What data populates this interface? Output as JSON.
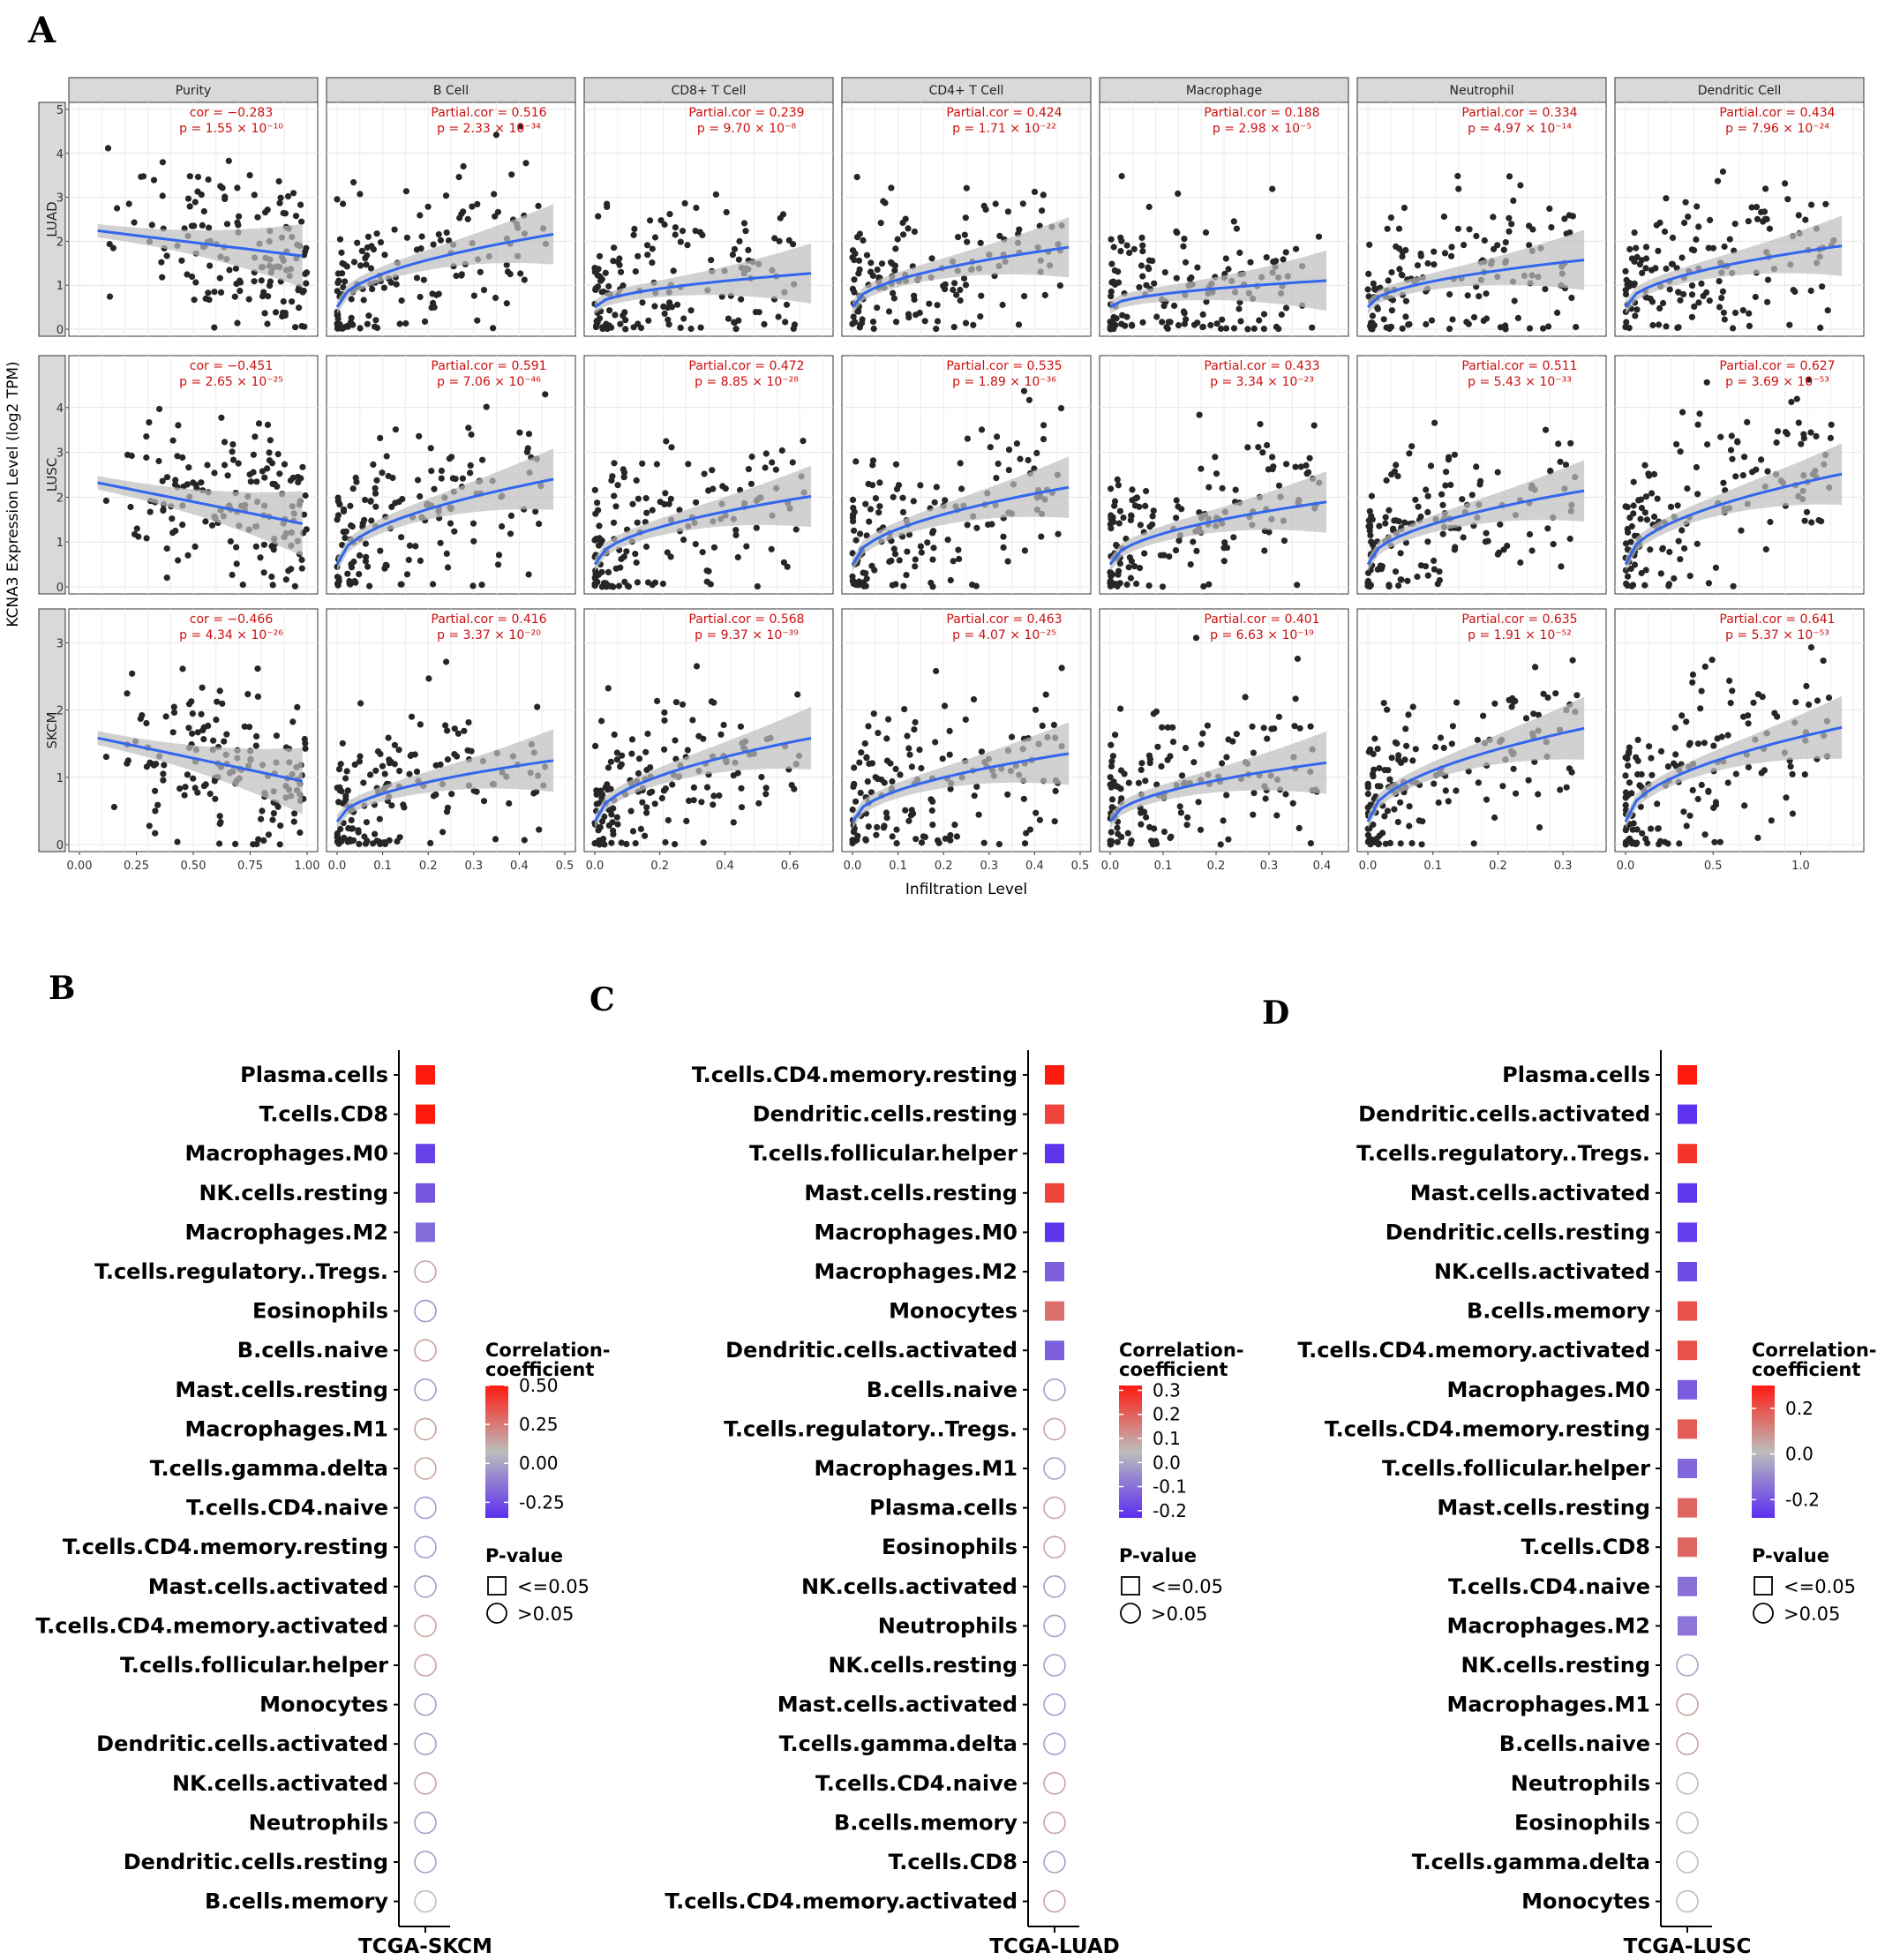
{
  "panel_letters": [
    "A",
    "B",
    "C",
    "D"
  ],
  "chart_data": [
    {
      "panel": "A",
      "type": "scatter",
      "ylabel": "KCNA3 Expression Level (log2 TPM)",
      "xlabel": "Infiltration Level",
      "columns": [
        "Purity",
        "B Cell",
        "CD8+ T Cell",
        "CD4+ T Cell",
        "Macrophage",
        "Neutrophil",
        "Dendritic Cell"
      ],
      "rows": [
        "LUAD",
        "LUSC",
        "SKCM"
      ],
      "x_ranges": [
        [
          0,
          1
        ],
        [
          0,
          0.5
        ],
        [
          0,
          0.7
        ],
        [
          0,
          0.5
        ],
        [
          0,
          0.43
        ],
        [
          0,
          0.35
        ],
        [
          0,
          1.3
        ]
      ],
      "x_tick_labels": [
        [
          "0.00",
          "0.25",
          "0.50",
          "0.75",
          "1.00"
        ],
        [
          "0.0",
          "0.1",
          "0.2",
          "0.3",
          "0.4",
          "0.5"
        ],
        [
          "0.0",
          "0.2",
          "0.4",
          "0.6"
        ],
        [
          "0.0",
          "0.1",
          "0.2",
          "0.3",
          "0.4",
          "0.5"
        ],
        [
          "0.0",
          "0.1",
          "0.2",
          "0.3",
          "0.4"
        ],
        [
          "0.0",
          "0.1",
          "0.2",
          "0.3"
        ],
        [
          "0.0",
          "0.5",
          "1.0"
        ]
      ],
      "y_ranges": {
        "LUAD": [
          0,
          5
        ],
        "LUSC": [
          0,
          5
        ],
        "SKCM": [
          0,
          3.4
        ]
      },
      "y_tick_labels": {
        "LUAD": [
          "0",
          "1",
          "2",
          "3",
          "4",
          "5"
        ],
        "LUSC": [
          "0",
          "1",
          "2",
          "3",
          "4"
        ],
        "SKCM": [
          "0",
          "1",
          "2",
          "3"
        ]
      },
      "annotations": {
        "LUAD": [
          [
            "cor = −0.283",
            "p = 1.55 × 10⁻¹⁰"
          ],
          [
            "Partial.cor = 0.516",
            "p = 2.33 × 10⁻³⁴"
          ],
          [
            "Partial.cor = 0.239",
            "p = 9.70 × 10⁻⁸"
          ],
          [
            "Partial.cor = 0.424",
            "p = 1.71 × 10⁻²²"
          ],
          [
            "Partial.cor = 0.188",
            "p = 2.98 × 10⁻⁵"
          ],
          [
            "Partial.cor = 0.334",
            "p = 4.97 × 10⁻¹⁴"
          ],
          [
            "Partial.cor = 0.434",
            "p = 7.96 × 10⁻²⁴"
          ]
        ],
        "LUSC": [
          [
            "cor = −0.451",
            "p = 2.65 × 10⁻²⁵"
          ],
          [
            "Partial.cor = 0.591",
            "p = 7.06 × 10⁻⁴⁶"
          ],
          [
            "Partial.cor = 0.472",
            "p = 8.85 × 10⁻²⁸"
          ],
          [
            "Partial.cor = 0.535",
            "p = 1.89 × 10⁻³⁶"
          ],
          [
            "Partial.cor = 0.433",
            "p = 3.34 × 10⁻²³"
          ],
          [
            "Partial.cor = 0.511",
            "p = 5.43 × 10⁻³³"
          ],
          [
            "Partial.cor = 0.627",
            "p = 3.69 × 10⁻⁵³"
          ]
        ],
        "SKCM": [
          [
            "cor = −0.466",
            "p = 4.34 × 10⁻²⁶"
          ],
          [
            "Partial.cor = 0.416",
            "p = 3.37 × 10⁻²⁰"
          ],
          [
            "Partial.cor = 0.568",
            "p = 9.37 × 10⁻³⁹"
          ],
          [
            "Partial.cor = 0.463",
            "p = 4.07 × 10⁻²⁵"
          ],
          [
            "Partial.cor = 0.401",
            "p = 6.63 × 10⁻¹⁹"
          ],
          [
            "Partial.cor = 0.635",
            "p = 1.91 × 10⁻⁵²"
          ],
          [
            "Partial.cor = 0.641",
            "p = 5.37 × 10⁻⁵³"
          ]
        ]
      },
      "correlations": {
        "LUAD": [
          -0.283,
          0.516,
          0.239,
          0.424,
          0.188,
          0.334,
          0.434
        ],
        "LUSC": [
          -0.451,
          0.591,
          0.472,
          0.535,
          0.433,
          0.511,
          0.627
        ],
        "SKCM": [
          -0.466,
          0.416,
          0.568,
          0.463,
          0.401,
          0.635,
          0.641
        ]
      },
      "point_color": "#262626",
      "fit_color": "#3366ee",
      "band_color": "#bdbdbd",
      "strip_color": "#d9d9d9"
    },
    {
      "panel": "B",
      "type": "dotplot",
      "xlabel": "TCGA-SKCM",
      "categories": [
        "Plasma.cells",
        "T.cells.CD8",
        "Macrophages.M0",
        "NK.cells.resting",
        "Macrophages.M2",
        "T.cells.regulatory..Tregs.",
        "Eosinophils",
        "B.cells.naive",
        "Mast.cells.resting",
        "Macrophages.M1",
        "T.cells.gamma.delta",
        "T.cells.CD4.naive",
        "T.cells.CD4.memory.resting",
        "Mast.cells.activated",
        "T.cells.CD4.memory.activated",
        "T.cells.follicular.helper",
        "Monocytes",
        "Dendritic.cells.activated",
        "NK.cells.activated",
        "Neutrophils",
        "Dendritic.cells.resting",
        "B.cells.memory"
      ],
      "values": [
        0.5,
        0.5,
        -0.3,
        -0.25,
        -0.2,
        0.08,
        -0.1,
        0.08,
        -0.08,
        0.08,
        0.08,
        -0.08,
        -0.08,
        -0.08,
        0.08,
        0.08,
        -0.08,
        -0.08,
        0.08,
        -0.08,
        -0.08,
        0.0
      ],
      "significant": [
        true,
        true,
        true,
        true,
        true,
        false,
        false,
        false,
        false,
        false,
        false,
        false,
        false,
        false,
        false,
        false,
        false,
        false,
        false,
        false,
        false,
        false
      ],
      "color_range": [
        -0.35,
        0.5
      ],
      "legend": {
        "title_lines": [
          "Correlation-",
          "coefficient"
        ],
        "ticks": [
          "0.50",
          "0.25",
          "0.00",
          "-0.25"
        ],
        "tick_values": [
          0.5,
          0.25,
          0.0,
          -0.25
        ],
        "pvalue_title": "P-value",
        "pvalue_labels": [
          "<=0.05",
          ">0.05"
        ]
      }
    },
    {
      "panel": "C",
      "type": "dotplot",
      "xlabel": "TCGA-LUAD",
      "categories": [
        "T.cells.CD4.memory.resting",
        "Dendritic.cells.resting",
        "T.cells.follicular.helper",
        "Mast.cells.resting",
        "Macrophages.M0",
        "Macrophages.M2",
        "Monocytes",
        "Dendritic.cells.activated",
        "B.cells.naive",
        "T.cells.regulatory..Tregs.",
        "Macrophages.M1",
        "Plasma.cells",
        "Eosinophils",
        "NK.cells.activated",
        "Neutrophils",
        "NK.cells.resting",
        "Mast.cells.activated",
        "T.cells.gamma.delta",
        "T.cells.CD4.naive",
        "B.cells.memory",
        "T.cells.CD8",
        "T.cells.CD4.memory.activated"
      ],
      "values": [
        0.32,
        0.24,
        -0.22,
        0.24,
        -0.22,
        -0.15,
        0.15,
        -0.15,
        -0.05,
        0.05,
        -0.05,
        0.05,
        0.05,
        -0.05,
        -0.05,
        -0.05,
        -0.05,
        -0.05,
        0.05,
        0.05,
        -0.05,
        0.05
      ],
      "significant": [
        true,
        true,
        true,
        true,
        true,
        true,
        true,
        true,
        false,
        false,
        false,
        false,
        false,
        false,
        false,
        false,
        false,
        false,
        false,
        false,
        false,
        false
      ],
      "color_range": [
        -0.23,
        0.32
      ],
      "legend": {
        "title_lines": [
          "Correlation-",
          "coefficient"
        ],
        "ticks": [
          "0.3",
          "0.2",
          "0.1",
          "0.0",
          "-0.1",
          "-0.2"
        ],
        "tick_values": [
          0.3,
          0.2,
          0.1,
          0.0,
          -0.1,
          -0.2
        ],
        "pvalue_title": "P-value",
        "pvalue_labels": [
          "<=0.05",
          ">0.05"
        ]
      }
    },
    {
      "panel": "D",
      "type": "dotplot",
      "xlabel": "TCGA-LUSC",
      "categories": [
        "Plasma.cells",
        "Dendritic.cells.activated",
        "T.cells.regulatory..Tregs.",
        "Mast.cells.activated",
        "Dendritic.cells.resting",
        "NK.cells.activated",
        "B.cells.memory",
        "T.cells.CD4.memory.activated",
        "Macrophages.M0",
        "T.cells.CD4.memory.resting",
        "T.cells.follicular.helper",
        "Mast.cells.resting",
        "T.cells.CD8",
        "T.cells.CD4.naive",
        "Macrophages.M2",
        "NK.cells.resting",
        "Macrophages.M1",
        "B.cells.naive",
        "Neutrophils",
        "Eosinophils",
        "T.cells.gamma.delta",
        "Monocytes"
      ],
      "values": [
        0.3,
        -0.27,
        0.25,
        -0.26,
        -0.25,
        -0.22,
        0.2,
        0.2,
        -0.19,
        0.18,
        -0.17,
        0.16,
        0.16,
        -0.15,
        -0.14,
        -0.05,
        0.05,
        0.05,
        0.0,
        0.0,
        0.0,
        0.0
      ],
      "significant": [
        true,
        true,
        true,
        true,
        true,
        true,
        true,
        true,
        true,
        true,
        true,
        true,
        true,
        true,
        true,
        false,
        false,
        false,
        false,
        false,
        false,
        false
      ],
      "color_range": [
        -0.28,
        0.3
      ],
      "legend": {
        "title_lines": [
          "Correlation-",
          "coefficient"
        ],
        "ticks": [
          "0.2",
          "0.0",
          "-0.2"
        ],
        "tick_values": [
          0.2,
          0.0,
          -0.2
        ],
        "pvalue_title": "P-value",
        "pvalue_labels": [
          "<=0.05",
          ">0.05"
        ]
      }
    }
  ]
}
